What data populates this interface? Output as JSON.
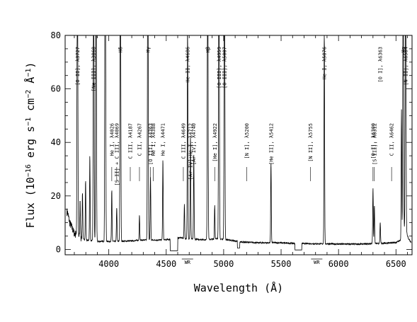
{
  "chart_data": {
    "type": "line",
    "xlabel": "Wavelength (Å)",
    "ylabel": "Flux (10<sup>−16</sup> erg s<sup>−1</sup> cm<sup>−2</sup> Å<sup>−1</sup>)",
    "xlim": [
      3620,
      6640
    ],
    "ylim": [
      -2,
      80
    ],
    "x_ticks": [
      4000,
      4500,
      5000,
      5500,
      6000,
      6500
    ],
    "y_ticks": [
      0,
      20,
      40,
      60,
      80
    ],
    "x_tick_labels": [
      "4000",
      "4500",
      "5000",
      "5500",
      "6000",
      "6500"
    ],
    "y_tick_labels": [
      "0",
      "20",
      "40",
      "60",
      "80"
    ],
    "grid": false,
    "continuum": [
      [
        3640,
        14
      ],
      [
        3660,
        10
      ],
      [
        3700,
        6
      ],
      [
        3760,
        4
      ],
      [
        3800,
        3.5
      ],
      [
        3850,
        3.2
      ],
      [
        3900,
        3
      ],
      [
        3950,
        3
      ],
      [
        4000,
        3
      ],
      [
        4100,
        3
      ],
      [
        4200,
        3.2
      ],
      [
        4300,
        3.5
      ],
      [
        4400,
        3.5
      ],
      [
        4500,
        3.6
      ],
      [
        4560,
        4
      ],
      [
        4620,
        4.4
      ],
      [
        4680,
        4
      ],
      [
        4750,
        3.8
      ],
      [
        4850,
        3.6
      ],
      [
        4950,
        4
      ],
      [
        5050,
        3.5
      ],
      [
        5150,
        2.8
      ],
      [
        5300,
        2.5
      ],
      [
        5450,
        2.5
      ],
      [
        5600,
        2.3
      ],
      [
        5700,
        2.2
      ],
      [
        5800,
        2.1
      ],
      [
        5900,
        2.1
      ],
      [
        6000,
        2.0
      ],
      [
        6100,
        2.0
      ],
      [
        6200,
        2.0
      ],
      [
        6300,
        2.2
      ],
      [
        6400,
        2.3
      ],
      [
        6500,
        2.6
      ],
      [
        6540,
        3.5
      ],
      [
        6580,
        8
      ],
      [
        6610,
        4
      ],
      [
        6630,
        2.8
      ]
    ],
    "lines": [
      {
        "x": 3727,
        "peak": 80
      },
      {
        "x": 3750,
        "peak": 9
      },
      {
        "x": 3771,
        "peak": 11
      },
      {
        "x": 3798,
        "peak": 14
      },
      {
        "x": 3835,
        "peak": 20
      },
      {
        "x": 3868,
        "peak": 80
      },
      {
        "x": 3889,
        "peak": 80
      },
      {
        "x": 3967,
        "peak": 36
      },
      {
        "x": 3970,
        "peak": 80
      },
      {
        "x": 4026,
        "peak": 12
      },
      {
        "x": 4069,
        "peak": 8
      },
      {
        "x": 4101,
        "peak": 80
      },
      {
        "x": 4267,
        "peak": 6
      },
      {
        "x": 4340,
        "peak": 80
      },
      {
        "x": 4363,
        "peak": 15
      },
      {
        "x": 4471,
        "peak": 19
      },
      {
        "x": 4658,
        "peak": 8
      },
      {
        "x": 4686,
        "peak": 56
      },
      {
        "x": 4711,
        "peak": 24
      },
      {
        "x": 4740,
        "peak": 20
      },
      {
        "x": 4861,
        "peak": 80
      },
      {
        "x": 4922,
        "peak": 8
      },
      {
        "x": 4959,
        "peak": 80
      },
      {
        "x": 5007,
        "peak": 80
      },
      {
        "x": 5412,
        "peak": 19
      },
      {
        "x": 5876,
        "peak": 54
      },
      {
        "x": 6300,
        "peak": 13
      },
      {
        "x": 6312,
        "peak": 9
      },
      {
        "x": 6363,
        "peak": 5
      },
      {
        "x": 6548,
        "peak": 30
      },
      {
        "x": 6563,
        "peak": 80
      },
      {
        "x": 6584,
        "peak": 80
      }
    ],
    "dips": [
      {
        "x1": 4535,
        "x2": 4600,
        "y": -0.5
      },
      {
        "x1": 5120,
        "x2": 5140,
        "y": 0.5
      },
      {
        "x1": 5620,
        "x2": 5680,
        "y": -0.2
      }
    ],
    "line_labels": [
      {
        "x": 3727,
        "text": "[O II], λ3727"
      },
      {
        "x": 3868,
        "text": "[Ne III], λ3868"
      },
      {
        "x": 4026,
        "text": "He I, λ4026"
      },
      {
        "x": 4069,
        "text": "[S II] + C III, λ4069"
      },
      {
        "x": 4101,
        "text": "Hδ"
      },
      {
        "x": 4187,
        "text": "C III, λ4187"
      },
      {
        "x": 4267,
        "text": "C II, λ4267"
      },
      {
        "x": 4340,
        "text": "Hγ"
      },
      {
        "x": 4363,
        "text": "[O III], λ4363"
      },
      {
        "x": 4388,
        "text": "He I, λ4388"
      },
      {
        "x": 4471,
        "text": "He I, λ4471"
      },
      {
        "x": 4649,
        "text": "C III, λ4649"
      },
      {
        "x": 4686,
        "text": "He II, λ4686"
      },
      {
        "x": 4712,
        "text": "[Ar IV]+He I, λ4712"
      },
      {
        "x": 4740,
        "text": "[Ar IV], λ4740"
      },
      {
        "x": 4861,
        "text": "Hβ"
      },
      {
        "x": 4922,
        "text": "[He I], λ4922"
      },
      {
        "x": 4959,
        "text": "[O III], λ4959"
      },
      {
        "x": 5007,
        "text": "[O III], λ5007"
      },
      {
        "x": 5200,
        "text": "[N I], λ5200"
      },
      {
        "x": 5412,
        "text": "[He II], λ5412"
      },
      {
        "x": 5755,
        "text": "[N II], λ5755"
      },
      {
        "x": 5876,
        "text": "He I, λ5876"
      },
      {
        "x": 6300,
        "text": "[O I], λ6300"
      },
      {
        "x": 6312,
        "text": "[S III], λ6312"
      },
      {
        "x": 6363,
        "text": "[O I], λ6363"
      },
      {
        "x": 6462,
        "text": "C II, λ6462"
      },
      {
        "x": 6563,
        "text": "Hα"
      },
      {
        "x": 6584,
        "text": "[N II], λ6584"
      }
    ],
    "annotations": [
      {
        "text": "WR",
        "x1": 4610,
        "x2": 4760
      },
      {
        "text": "WR",
        "x1": 5760,
        "x2": 5860
      }
    ]
  }
}
